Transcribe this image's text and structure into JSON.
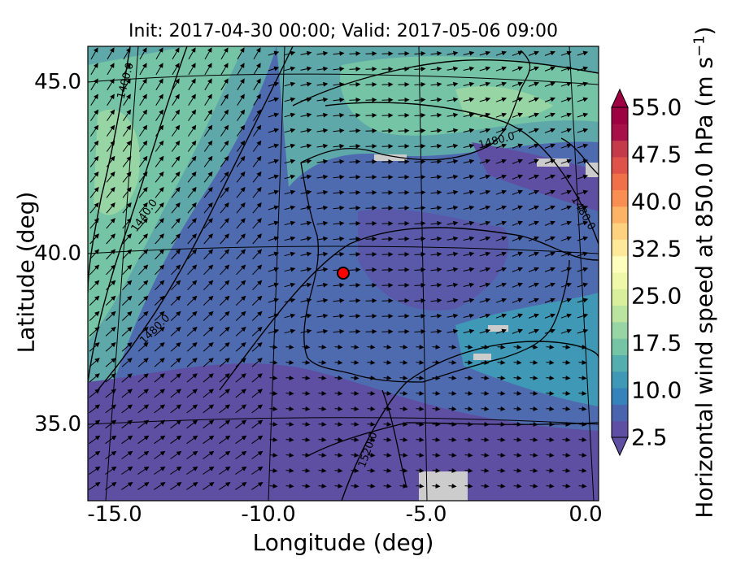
{
  "figure": {
    "title": "Init: 2017-04-30 00:00; Valid: 2017-05-06 09:00",
    "xlabel": "Longitude (deg)",
    "ylabel": "Latitude (deg)",
    "x_ticks": [
      "-15.0",
      "-10.0",
      "-5.0",
      "0.0"
    ],
    "y_ticks": [
      "45.0",
      "40.0",
      "35.0"
    ],
    "marker_color": "#ff0000"
  },
  "colorbar": {
    "label": "Horizontal wind speed at 850.0 hPa (m s",
    "label_sup": "−1",
    "label_end": ")",
    "ticks": [
      "55.0",
      "47.5",
      "40.0",
      "32.5",
      "25.0",
      "17.5",
      "10.0",
      "2.5"
    ],
    "colors": [
      "#5e4fa2",
      "#4a64ad",
      "#3682ba",
      "#3f98b5",
      "#54aead",
      "#74c4a5",
      "#98d5a4",
      "#bbe4a0",
      "#d9ef9b",
      "#eef8a8",
      "#fefebd",
      "#fee99a",
      "#fed17e",
      "#fdb365",
      "#f98e52",
      "#f0704a",
      "#de5249",
      "#c53a4a",
      "#a8104a",
      "#9e0142"
    ]
  },
  "contours": [
    {
      "label": "1400.0"
    },
    {
      "label": "1440.0"
    },
    {
      "label": "1480.0"
    },
    {
      "label": "1480.0"
    },
    {
      "label": "1480.0"
    },
    {
      "label": "1520.0"
    }
  ]
}
